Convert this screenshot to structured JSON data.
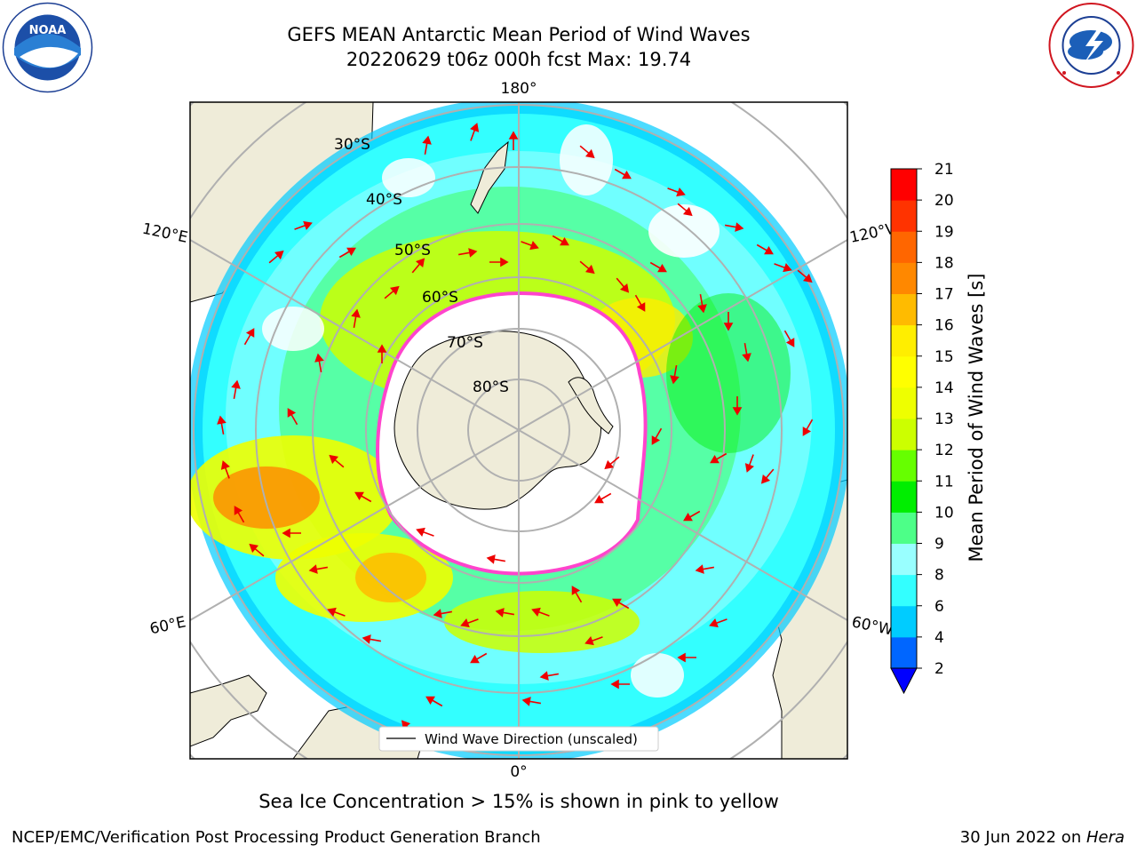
{
  "title_line1": "GEFS MEAN Antarctic Mean Period of Wind Waves",
  "title_line2": "20220629 t06z 000h fcst   Max: 19.74",
  "footer_note": "Sea Ice Concentration > 15% is shown in pink to yellow",
  "footer_left": "NCEP/EMC/Verification Post Processing Product Generation Branch",
  "footer_right_date": "30 Jun 2022 on ",
  "footer_right_host": "Hera",
  "legend_label": "Wind Wave Direction (unscaled)",
  "logos": {
    "noaa": {
      "text": "NOAA",
      "ring_text": "NATIONAL OCEANIC AND ATMOSPHERIC ADMINISTRATION · U.S. DEPARTMENT OF COMMERCE"
    },
    "nws": {
      "ring_text": "NATIONAL WEATHER SERVICE"
    }
  },
  "longitude_labels": {
    "top": "180°",
    "bottom": "0°",
    "left_upper": "120°E",
    "left_lower": "60°E",
    "right_upper": "120°W",
    "right_lower": "60°W"
  },
  "latitude_labels": [
    "30°S",
    "40°S",
    "50°S",
    "60°S",
    "70°S",
    "80°S"
  ],
  "colorbar": {
    "label": "Mean Period of Wind Waves [s]",
    "ticks": [
      "2",
      "4",
      "6",
      "8",
      "9",
      "10",
      "11",
      "12",
      "13",
      "14",
      "15",
      "16",
      "17",
      "18",
      "19",
      "20",
      "21"
    ],
    "colors": [
      "#0066ff",
      "#00ccff",
      "#33ffff",
      "#99ffff",
      "#4dff88",
      "#00ee00",
      "#66ff00",
      "#ccff00",
      "#eeff00",
      "#ffff00",
      "#ffee00",
      "#ffbb00",
      "#ff8800",
      "#ff6600",
      "#ff3300",
      "#ff0000"
    ],
    "extend_color": "#0000ff"
  },
  "colors": {
    "land": "#efecd9",
    "ice_edge": "#ff44cc",
    "arrow": "#ee0000",
    "grid": "#b0b0b0"
  }
}
